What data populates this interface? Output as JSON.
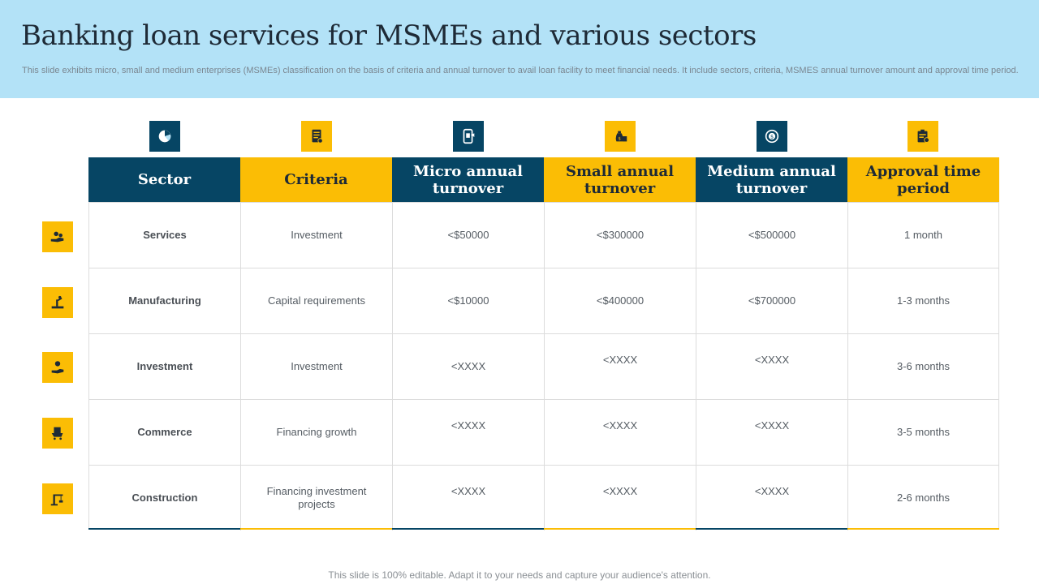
{
  "page": {
    "title": "Banking loan services  for MSMEs and various sectors",
    "subtitle": "This slide exhibits micro, small and medium enterprises (MSMEs) classification on the basis of criteria and annual turnover to avail loan facility to meet financial needs. It include sectors, criteria, MSMES annual turnover amount and approval time period.",
    "footer": "This slide is 100% editable. Adapt it to your needs and capture your audience's attention."
  },
  "colors": {
    "navy": "#064564",
    "gold": "#fbbd05",
    "header_bg": "#b3e2f7"
  },
  "column_icons": [
    "pie-chart-icon",
    "checklist-icon",
    "mobile-payment-icon",
    "money-bag-icon",
    "dollar-cycle-icon",
    "clipboard-icon"
  ],
  "row_icons": [
    "hand-gears-icon",
    "factory-robot-icon",
    "investor-hand-icon",
    "shopping-cart-icon",
    "crane-icon"
  ],
  "table": {
    "headers": [
      "Sector",
      "Criteria",
      "Micro annual turnover",
      "Small annual turnover",
      "Medium annual turnover",
      "Approval time period"
    ],
    "rows": [
      [
        "Services",
        "Investment",
        "<$50000",
        "<$300000",
        "<$500000",
        "1 month"
      ],
      [
        "Manufacturing",
        "Capital requirements",
        "<$10000",
        "<$400000",
        "<$700000",
        "1-3 months"
      ],
      [
        "Investment",
        "Investment",
        "<XXXX",
        "<XXXX",
        "<XXXX",
        "3-6 months"
      ],
      [
        "Commerce",
        "Financing growth",
        "<XXXX",
        "<XXXX",
        "<XXXX",
        "3-5 months"
      ],
      [
        "Construction",
        "Financing investment projects",
        "<XXXX",
        "<XXXX",
        "<XXXX",
        "2-6 months"
      ]
    ]
  }
}
